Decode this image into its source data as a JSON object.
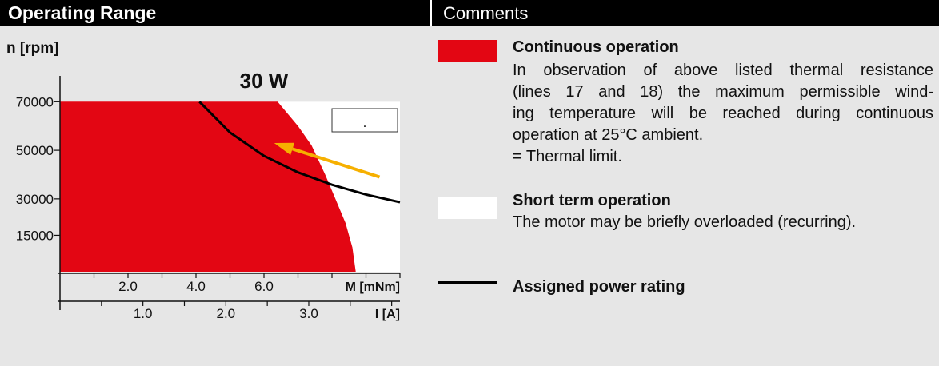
{
  "header": {
    "left_title": "Operating Range",
    "right_title": "Comments"
  },
  "chart_data": {
    "type": "area",
    "ylabel": "n [rpm]",
    "yticks": [
      15000,
      30000,
      50000,
      70000
    ],
    "ylim": [
      0,
      79000
    ],
    "x_primary": {
      "label": "M [mNm]",
      "ticks": [
        2.0,
        4.0,
        6.0
      ],
      "ticks_text": [
        "2.0",
        "4.0",
        "6.0"
      ],
      "range": [
        0,
        10.0
      ]
    },
    "x_secondary": {
      "label": "I [A]",
      "ticks": [
        1.0,
        2.0,
        3.0
      ],
      "ticks_text": [
        "1.0",
        "2.0",
        "3.0"
      ],
      "range": [
        0,
        4.1
      ]
    },
    "continuous_region": [
      [
        0,
        70000
      ],
      [
        6.4,
        70000
      ],
      [
        7.0,
        60000
      ],
      [
        7.4,
        52000
      ],
      [
        7.8,
        40000
      ],
      [
        8.1,
        30000
      ],
      [
        8.4,
        20000
      ],
      [
        8.6,
        10000
      ],
      [
        8.7,
        0
      ]
    ],
    "short_term_region": {
      "max_speed": 70000,
      "max_torque": 10.0
    },
    "power_curve": {
      "name": "Assigned power rating",
      "points": [
        [
          4.1,
          70000
        ],
        [
          5.0,
          57300
        ],
        [
          6.0,
          47700
        ],
        [
          7.0,
          40900
        ],
        [
          8.0,
          35800
        ],
        [
          9.0,
          31800
        ],
        [
          10.0,
          28600
        ]
      ]
    },
    "annotation": {
      "text": "30 W",
      "x": 6.0,
      "y": 77000
    },
    "arrow": {
      "from": [
        9.4,
        39000
      ],
      "to": [
        6.3,
        53000
      ],
      "color": "#f6b000"
    },
    "blank_box_text": "."
  },
  "legend": {
    "continuous": {
      "title": "Continuous operation",
      "lines": [
        "In observation of above listed thermal resistance",
        "(lines 17 and 18) the maximum permissible wind-",
        "ing temperature will be reached during continuous",
        "operation at 25°C ambient."
      ],
      "note": "= Thermal limit.",
      "color": "#e30613"
    },
    "short_term": {
      "title": "Short term operation",
      "text": "The motor may be briefly overloaded (recurring).",
      "color": "#ffffff"
    },
    "power": {
      "title": "Assigned power rating"
    }
  }
}
